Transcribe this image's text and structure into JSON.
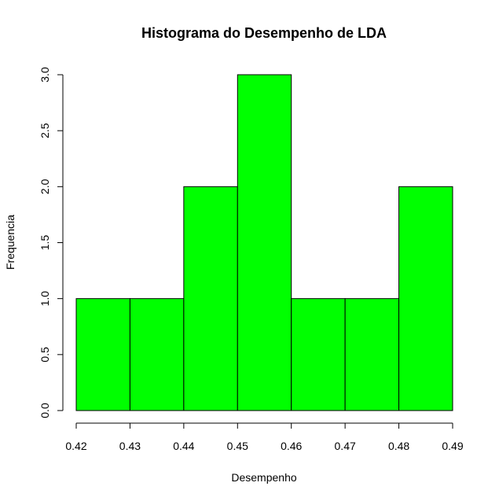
{
  "chart_data": {
    "type": "bar",
    "title": "Histograma do Desempenho de LDA",
    "xlabel": "Desempenho",
    "ylabel": "Frequencia",
    "bins": [
      {
        "start": 0.42,
        "end": 0.43,
        "count": 1
      },
      {
        "start": 0.43,
        "end": 0.44,
        "count": 1
      },
      {
        "start": 0.44,
        "end": 0.45,
        "count": 2
      },
      {
        "start": 0.45,
        "end": 0.46,
        "count": 3
      },
      {
        "start": 0.46,
        "end": 0.47,
        "count": 1
      },
      {
        "start": 0.47,
        "end": 0.48,
        "count": 1
      },
      {
        "start": 0.48,
        "end": 0.49,
        "count": 2
      }
    ],
    "xlim": [
      0.42,
      0.49
    ],
    "ylim": [
      0,
      3
    ],
    "x_ticks": [
      "0.42",
      "0.43",
      "0.44",
      "0.45",
      "0.46",
      "0.47",
      "0.48",
      "0.49"
    ],
    "y_ticks": [
      "0.0",
      "0.5",
      "1.0",
      "1.5",
      "2.0",
      "2.5",
      "3.0"
    ],
    "bar_color": "#00ff00",
    "bar_border_color": "#000000",
    "grid": false
  }
}
